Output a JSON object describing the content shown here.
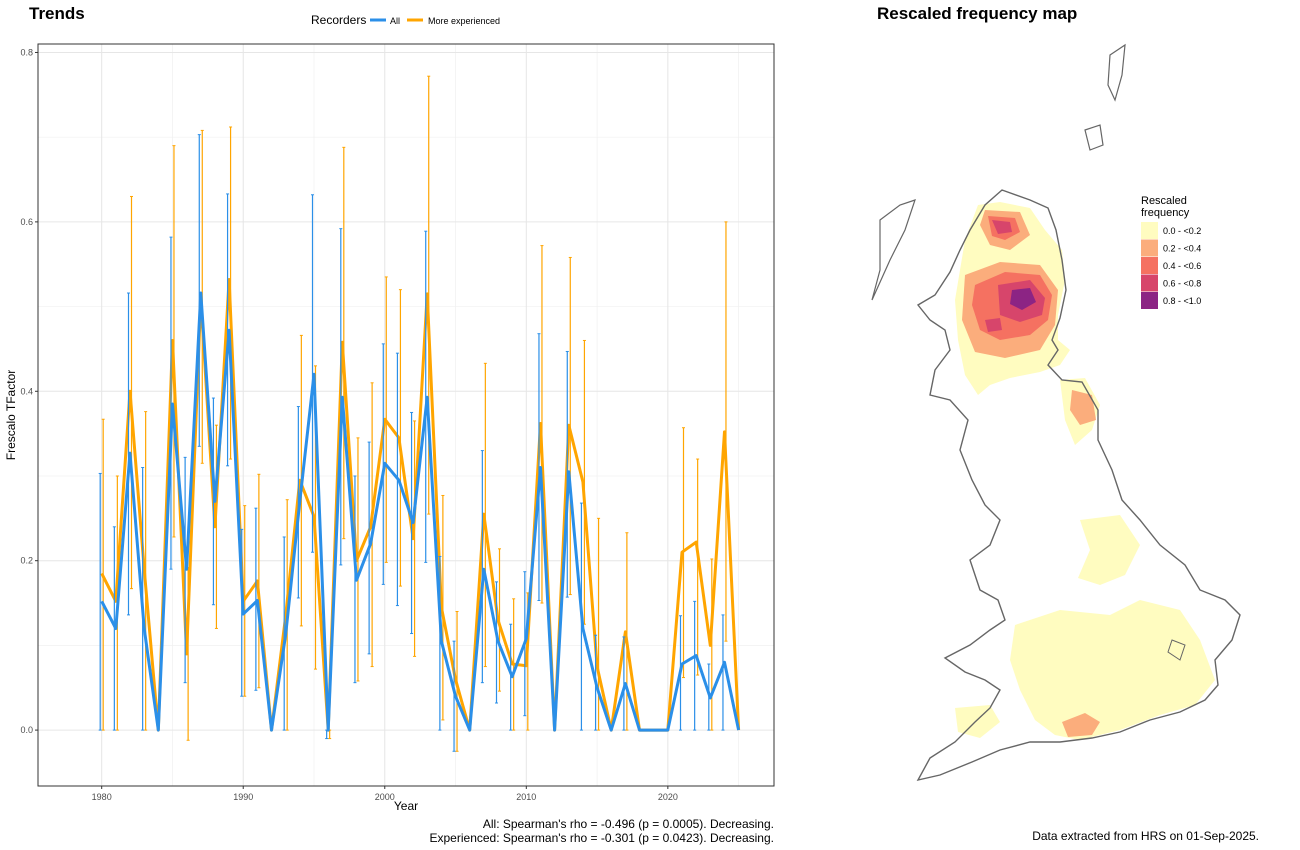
{
  "chart_data": [
    {
      "type": "line",
      "title": "Trends",
      "xlabel": "Year",
      "ylabel": "Frescalo TFactor",
      "xlim": [
        1977.7,
        1975.5
      ],
      "ylim": [
        -0.066,
        0.81
      ],
      "xticks": [
        "1980",
        "1990",
        "2000",
        "2010",
        "2020"
      ],
      "yticks": [
        "0.0",
        "0.2",
        "0.4",
        "0.6",
        "0.8"
      ],
      "grid": true,
      "legend": {
        "title": "Recorders",
        "position": "top"
      },
      "series": [
        {
          "name": "All",
          "color": "#2b8fe8",
          "x": [
            1980,
            1981,
            1982,
            1983,
            1984,
            1985,
            1986,
            1987,
            1988,
            1989,
            1990,
            1991,
            1992,
            1993,
            1994,
            1995,
            1996,
            1997,
            1998,
            1999,
            2000,
            2001,
            2002,
            2003,
            2004,
            2005,
            2006,
            2007,
            2008,
            2009,
            2010,
            2011,
            2012,
            2013,
            2014,
            2015,
            2016,
            2017,
            2018,
            2019,
            2020,
            2021,
            2022,
            2023,
            2024,
            2025
          ],
          "y": [
            0.152,
            0.12,
            0.327,
            0.12,
            0.0,
            0.385,
            0.19,
            0.516,
            0.27,
            0.472,
            0.137,
            0.153,
            0.0,
            0.113,
            0.27,
            0.42,
            0.0,
            0.393,
            0.177,
            0.22,
            0.315,
            0.295,
            0.245,
            0.393,
            0.105,
            0.04,
            0.0,
            0.19,
            0.105,
            0.063,
            0.108,
            0.31,
            0.0,
            0.305,
            0.12,
            0.05,
            0.0,
            0.055,
            0.0,
            0.0,
            0.0,
            0.078,
            0.088,
            0.038,
            0.08,
            0.0
          ],
          "err_low": [
            0.0,
            0.0,
            0.136,
            0.0,
            0.0,
            0.19,
            0.056,
            0.335,
            0.148,
            0.312,
            0.04,
            0.047,
            0.0,
            0.0,
            0.156,
            0.21,
            -0.01,
            0.195,
            0.056,
            0.09,
            0.172,
            0.147,
            0.114,
            0.198,
            0.0,
            -0.025,
            0.0,
            0.056,
            0.032,
            0.0,
            0.017,
            0.153,
            0.0,
            0.157,
            0.0,
            0.0,
            0.0,
            0.0,
            0.0,
            0.0,
            0.0,
            0.0,
            0.0,
            0.0,
            0.0,
            0.0
          ],
          "err_high": [
            0.303,
            0.24,
            0.516,
            0.31,
            0.0,
            0.582,
            0.322,
            0.703,
            0.392,
            0.633,
            0.237,
            0.262,
            0.0,
            0.228,
            0.382,
            0.632,
            0.0,
            0.592,
            0.3,
            0.34,
            0.456,
            0.445,
            0.375,
            0.589,
            0.205,
            0.105,
            0.0,
            0.33,
            0.175,
            0.125,
            0.187,
            0.468,
            0.0,
            0.447,
            0.268,
            0.112,
            0.0,
            0.11,
            0.0,
            0.0,
            0.0,
            0.135,
            0.152,
            0.078,
            0.136,
            0.0
          ]
        },
        {
          "name": "More experienced",
          "color": "#ffa500",
          "x": [
            1980,
            1981,
            1982,
            1983,
            1984,
            1985,
            1986,
            1987,
            1988,
            1989,
            1990,
            1991,
            1992,
            1993,
            1994,
            1995,
            1996,
            1997,
            1998,
            1999,
            2000,
            2001,
            2002,
            2003,
            2004,
            2005,
            2006,
            2007,
            2008,
            2009,
            2010,
            2011,
            2012,
            2013,
            2014,
            2015,
            2016,
            2017,
            2018,
            2019,
            2020,
            2021,
            2022,
            2023,
            2024,
            2025
          ],
          "y": [
            0.185,
            0.152,
            0.4,
            0.19,
            0.0,
            0.46,
            0.09,
            0.51,
            0.24,
            0.532,
            0.152,
            0.176,
            0.0,
            0.135,
            0.295,
            0.252,
            0.0,
            0.458,
            0.2,
            0.24,
            0.367,
            0.345,
            0.226,
            0.515,
            0.145,
            0.06,
            0.0,
            0.255,
            0.13,
            0.078,
            0.076,
            0.362,
            0.0,
            0.36,
            0.293,
            0.075,
            0.0,
            0.116,
            0.0,
            0.0,
            0.0,
            0.21,
            0.222,
            0.1,
            0.352,
            0.0
          ],
          "err_low": [
            0.0,
            0.0,
            0.167,
            0.0,
            0.0,
            0.228,
            -0.012,
            0.315,
            0.12,
            0.32,
            0.04,
            0.05,
            0.0,
            0.0,
            0.123,
            0.072,
            -0.01,
            0.226,
            0.058,
            0.075,
            0.198,
            0.17,
            0.087,
            0.255,
            0.012,
            -0.025,
            0.0,
            0.075,
            0.046,
            0.0,
            0.0,
            0.15,
            0.0,
            0.16,
            0.125,
            0.0,
            0.0,
            0.0,
            0.0,
            0.0,
            0.0,
            0.062,
            0.065,
            0.0,
            0.105,
            0.0
          ],
          "err_high": [
            0.367,
            0.3,
            0.63,
            0.376,
            0.0,
            0.69,
            0.192,
            0.708,
            0.36,
            0.712,
            0.265,
            0.302,
            0.0,
            0.272,
            0.466,
            0.43,
            0.0,
            0.688,
            0.345,
            0.41,
            0.535,
            0.52,
            0.365,
            0.772,
            0.277,
            0.14,
            0.0,
            0.433,
            0.214,
            0.155,
            0.162,
            0.572,
            0.0,
            0.558,
            0.46,
            0.25,
            0.0,
            0.233,
            0.0,
            0.0,
            0.0,
            0.357,
            0.32,
            0.202,
            0.6,
            0.0
          ]
        }
      ]
    },
    {
      "type": "heatmap",
      "title": "Rescaled frequency map",
      "legend": {
        "title": [
          "Rescaled",
          "frequency"
        ],
        "position": "right",
        "entries": [
          {
            "label": "0.0 - <0.2",
            "color": "#fffcc0"
          },
          {
            "label": "0.2 - <0.4",
            "color": "#fbad7c"
          },
          {
            "label": "0.4 - <0.6",
            "color": "#f57161"
          },
          {
            "label": "0.6 - <0.8",
            "color": "#d7456b"
          },
          {
            "label": "0.8 - <1.0",
            "color": "#8c2484"
          }
        ]
      }
    }
  ],
  "annotations": {
    "stat_all": "All: Spearman's rho = -0.496 (p = 0.0005). Decreasing.",
    "stat_experienced": "Experienced: Spearman's rho = -0.301 (p = 0.0423). Decreasing.",
    "data_source": "Data extracted from HRS on 01-Sep-2025."
  }
}
